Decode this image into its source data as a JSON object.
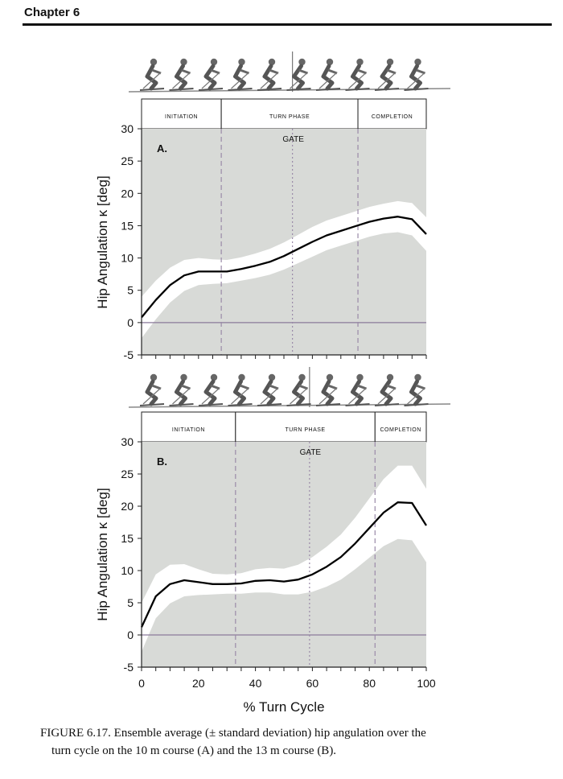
{
  "header": {
    "chapter": "Chapter 6"
  },
  "caption": {
    "line1": "FIGURE 6.17.  Ensemble average (± standard deviation) hip angulation over the",
    "line2": "turn cycle on the 10 m course (A) and the 13 m course (B)."
  },
  "chart_data": [
    {
      "type": "line",
      "panel_label": "A.",
      "ylabel": "Hip Angulation κ [deg]",
      "xlabel": "",
      "ylim": [
        -5,
        30
      ],
      "yticks": [
        "30",
        "25",
        "20",
        "15",
        "10",
        "5",
        "0",
        "-5"
      ],
      "xlim": [
        0,
        100
      ],
      "phases": [
        "INITIATION",
        "TURN PHASE",
        "COMPLETION"
      ],
      "phase_bounds": [
        28,
        76
      ],
      "gate": {
        "label": "GATE",
        "x": 53
      },
      "series": [
        {
          "name": "mean",
          "x": [
            0,
            5,
            10,
            15,
            20,
            25,
            30,
            35,
            40,
            45,
            50,
            55,
            60,
            65,
            70,
            75,
            80,
            85,
            90,
            95,
            100
          ],
          "y": [
            0.8,
            3.5,
            5.8,
            7.3,
            7.9,
            7.9,
            7.9,
            8.3,
            8.8,
            9.4,
            10.3,
            11.4,
            12.5,
            13.5,
            14.2,
            14.9,
            15.6,
            16.1,
            16.4,
            16.0,
            13.7
          ],
          "sd": [
            3.2,
            3.0,
            2.7,
            2.4,
            2.1,
            1.9,
            1.8,
            1.8,
            1.9,
            2.0,
            2.1,
            2.2,
            2.3,
            2.3,
            2.3,
            2.3,
            2.3,
            2.3,
            2.4,
            2.5,
            2.6
          ]
        }
      ]
    },
    {
      "type": "line",
      "panel_label": "B.",
      "ylabel": "Hip Angulation κ [deg]",
      "xlabel": "% Turn Cycle",
      "ylim": [
        -5,
        30
      ],
      "yticks": [
        "30",
        "25",
        "20",
        "15",
        "10",
        "5",
        "0",
        "-5"
      ],
      "xlim": [
        0,
        100
      ],
      "xticks": [
        "0",
        "20",
        "40",
        "60",
        "80",
        "100"
      ],
      "phases": [
        "INITIATION",
        "TURN PHASE",
        "COMPLETION"
      ],
      "phase_bounds": [
        33,
        82
      ],
      "gate": {
        "label": "GATE",
        "x": 59
      },
      "series": [
        {
          "name": "mean",
          "x": [
            0,
            5,
            10,
            15,
            20,
            25,
            30,
            35,
            40,
            45,
            50,
            55,
            60,
            65,
            70,
            75,
            80,
            85,
            90,
            95,
            100
          ],
          "y": [
            1.2,
            6.0,
            7.9,
            8.5,
            8.2,
            7.9,
            7.9,
            8.0,
            8.4,
            8.5,
            8.3,
            8.6,
            9.4,
            10.6,
            12.1,
            14.2,
            16.6,
            19.0,
            20.6,
            20.5,
            17.0
          ],
          "sd": [
            3.8,
            3.4,
            3.0,
            2.5,
            2.0,
            1.6,
            1.5,
            1.6,
            1.8,
            1.9,
            2.0,
            2.3,
            2.7,
            3.1,
            3.5,
            4.0,
            4.6,
            5.2,
            5.7,
            5.8,
            5.7
          ]
        }
      ]
    }
  ]
}
